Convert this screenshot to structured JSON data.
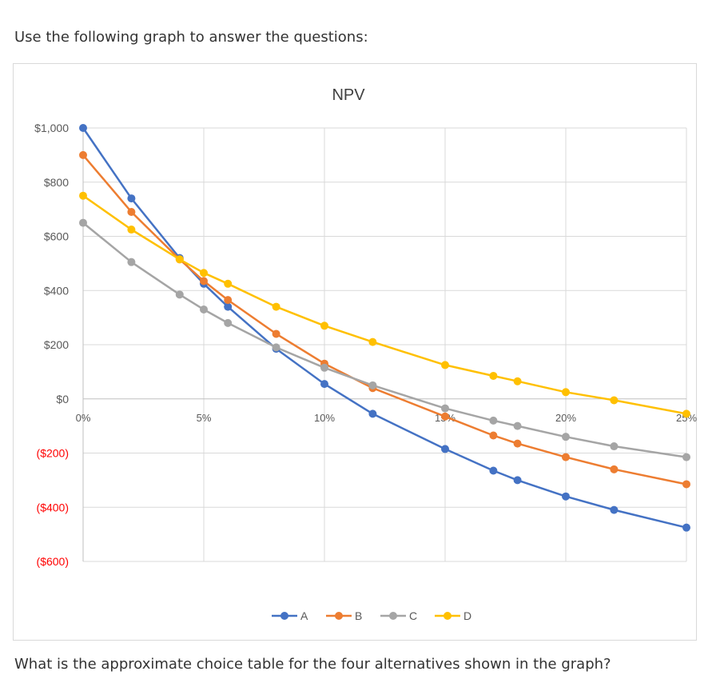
{
  "page": {
    "intro_text": "Use the following graph to answer the questions:",
    "question_text": "What is the approximate choice table for the four alternatives shown in the graph?"
  },
  "colors": {
    "A": "#4472C4",
    "B": "#ED7D31",
    "C": "#A5A5A5",
    "D": "#FFC000",
    "negative_label": "#FF0000",
    "positive_label": "#595959",
    "grid": "#d9d9d9"
  },
  "chart_data": {
    "type": "line",
    "title": "NPV",
    "xlabel": "",
    "ylabel": "",
    "x_ticks": [
      {
        "value": 0,
        "label": "0%"
      },
      {
        "value": 5,
        "label": "5%"
      },
      {
        "value": 10,
        "label": "10%"
      },
      {
        "value": 15,
        "label": "15%"
      },
      {
        "value": 20,
        "label": "20%"
      },
      {
        "value": 25,
        "label": "25%"
      }
    ],
    "y_ticks": [
      {
        "value": 1000,
        "label": "$1,000"
      },
      {
        "value": 800,
        "label": "$800"
      },
      {
        "value": 600,
        "label": "$600"
      },
      {
        "value": 400,
        "label": "$400"
      },
      {
        "value": 200,
        "label": "$200"
      },
      {
        "value": 0,
        "label": "$0"
      },
      {
        "value": -200,
        "label": "($200)"
      },
      {
        "value": -400,
        "label": "($400)"
      },
      {
        "value": -600,
        "label": "($600)"
      }
    ],
    "xlim": [
      0,
      25
    ],
    "ylim": [
      -600,
      1000
    ],
    "grid": true,
    "legend_position": "bottom",
    "series": [
      {
        "name": "A",
        "color": "#4472C4",
        "x": [
          0,
          2,
          4,
          5,
          6,
          8,
          10,
          12,
          15,
          17,
          18,
          20,
          22,
          25
        ],
        "y": [
          1000,
          740,
          520,
          425,
          340,
          185,
          55,
          -55,
          -185,
          -265,
          -300,
          -360,
          -410,
          -475
        ]
      },
      {
        "name": "B",
        "color": "#ED7D31",
        "x": [
          0,
          2,
          4,
          5,
          6,
          8,
          10,
          12,
          15,
          17,
          18,
          20,
          22,
          25
        ],
        "y": [
          900,
          690,
          515,
          435,
          365,
          240,
          130,
          40,
          -65,
          -135,
          -165,
          -215,
          -260,
          -315
        ]
      },
      {
        "name": "C",
        "color": "#A5A5A5",
        "x": [
          0,
          2,
          4,
          5,
          6,
          8,
          10,
          12,
          15,
          17,
          18,
          20,
          22,
          25
        ],
        "y": [
          650,
          505,
          385,
          330,
          280,
          190,
          115,
          50,
          -35,
          -80,
          -100,
          -140,
          -175,
          -215
        ]
      },
      {
        "name": "D",
        "color": "#FFC000",
        "x": [
          0,
          2,
          4,
          5,
          6,
          8,
          10,
          12,
          15,
          17,
          18,
          20,
          22,
          25
        ],
        "y": [
          750,
          625,
          515,
          465,
          425,
          340,
          270,
          210,
          125,
          85,
          65,
          25,
          -5,
          -55
        ]
      }
    ]
  }
}
